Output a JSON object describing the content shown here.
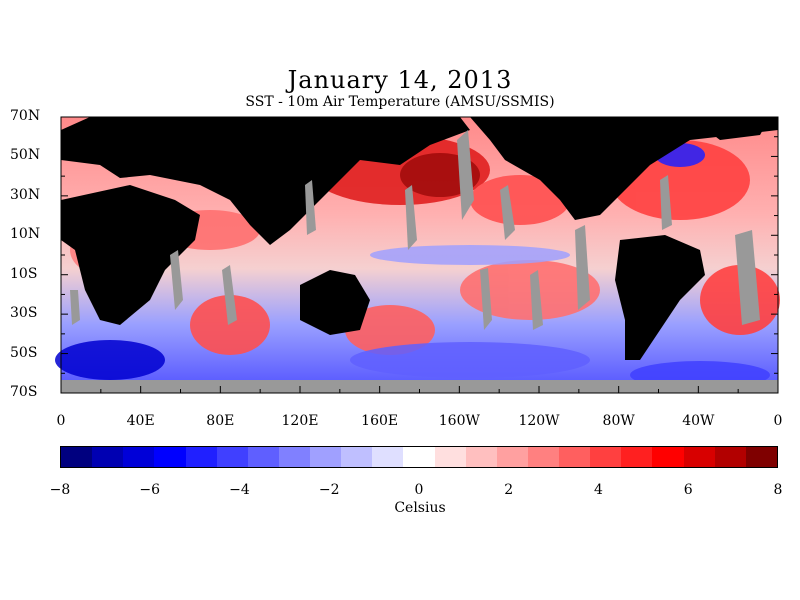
{
  "title": "January 14, 2013",
  "subtitle": "SST - 10m Air Temperature (AMSU/SSMIS)",
  "lat_labels": [
    "70N",
    "50N",
    "30N",
    "10N",
    "10S",
    "30S",
    "50S",
    "70S"
  ],
  "lon_labels": [
    "0",
    "40E",
    "80E",
    "120E",
    "160E",
    "160W",
    "120W",
    "80W",
    "40W",
    "0"
  ],
  "colorbar": {
    "tick_labels": [
      "−8",
      "−6",
      "−4",
      "−2",
      "0",
      "2",
      "4",
      "6",
      "8"
    ],
    "unit": "Celsius",
    "colors": [
      "#00007f",
      "#0000b2",
      "#0000d8",
      "#0000ff",
      "#2020ff",
      "#4040ff",
      "#5f5fff",
      "#8080ff",
      "#a0a0ff",
      "#bfbfff",
      "#dfdfff",
      "#ffffff",
      "#ffdfdf",
      "#ffbfbf",
      "#ffa0a0",
      "#ff8080",
      "#ff5f5f",
      "#ff4040",
      "#ff2020",
      "#ff0000",
      "#d80000",
      "#b20000",
      "#7f0000"
    ]
  },
  "legend": {
    "land": "#000000",
    "no_data": "#999999"
  }
}
